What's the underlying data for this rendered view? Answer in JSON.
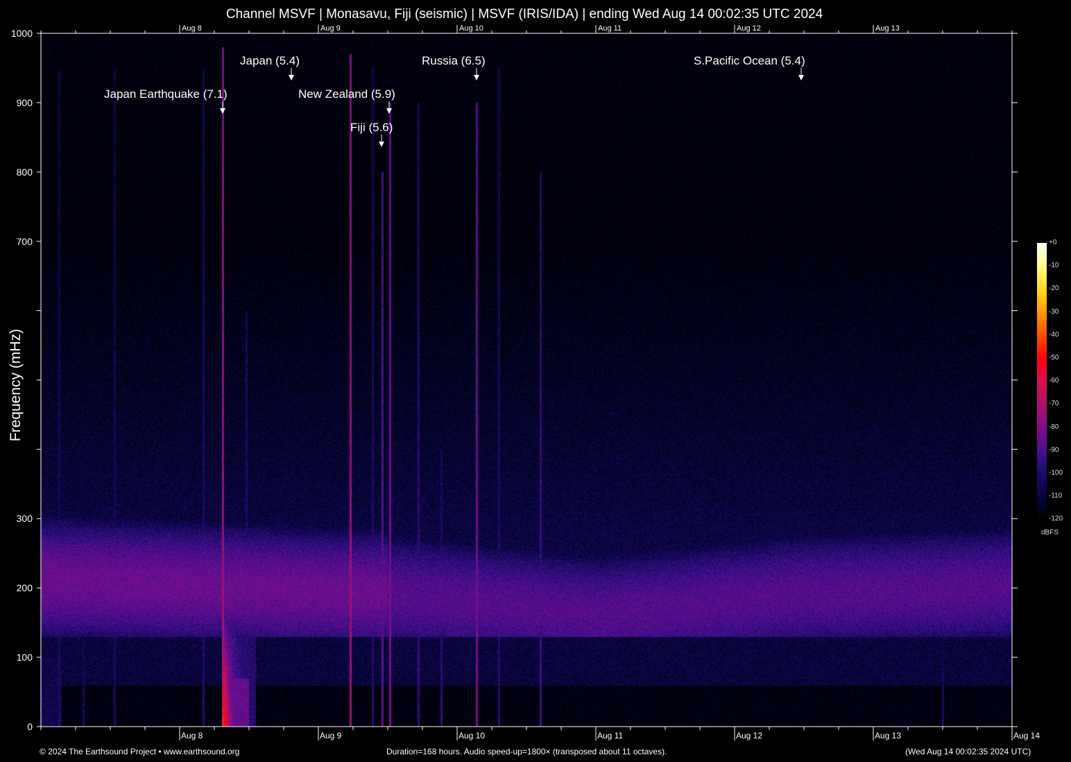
{
  "chart_data": {
    "type": "heatmap",
    "title": "Channel MSVF | Monasavu, Fiji (seismic) | MSVF (IRIS/IDA) | ending Wed Aug 14 00:02:35 UTC 2024",
    "ylabel": "Frequency (mHz)",
    "ylim": [
      0,
      1000
    ],
    "y_tick_labels": [
      "0",
      "100",
      "200",
      "300",
      "700",
      "800",
      "900",
      "1000"
    ],
    "y_tick_values": [
      0,
      100,
      200,
      300,
      700,
      800,
      900,
      1000
    ],
    "x_tick_labels": [
      "Aug  8",
      "Aug  9",
      "Aug 10",
      "Aug 11",
      "Aug 12",
      "Aug 13",
      "Aug 14"
    ],
    "x_top_tick_labels": [
      "Aug  8",
      "Aug  9",
      "Aug 10",
      "Aug 11",
      "Aug 12",
      "Aug 13"
    ],
    "colorbar": {
      "unit": "dBFS",
      "range": [
        -120,
        0
      ],
      "tick_labels": [
        "+0",
        "-10",
        "-20",
        "-30",
        "-40",
        "-50",
        "-60",
        "-70",
        "-80",
        "-90",
        "-100",
        "-110",
        "-120"
      ]
    },
    "annotations": [
      {
        "label": "Japan Earthquake (7.1)"
      },
      {
        "label": "Japan (5.4)"
      },
      {
        "label": "New Zealand (5.9)"
      },
      {
        "label": "Fiji (5.6)"
      },
      {
        "label": "Russia (6.5)"
      },
      {
        "label": "S.Pacific Ocean (5.4)"
      }
    ]
  },
  "footer": {
    "copyright": "© 2024 The Earthsound Project • www.earthsound.org",
    "duration": "Duration=168 hours. Audio speed-up=1800× (transposed about 11 octaves).",
    "end_time": "(Wed Aug 14 00:02:35 2024 UTC)"
  }
}
